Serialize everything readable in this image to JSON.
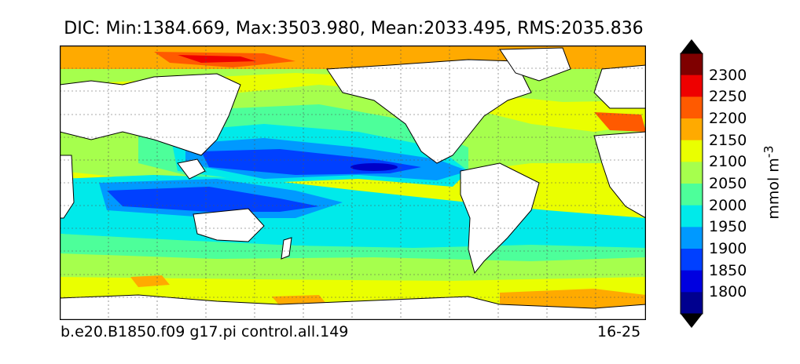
{
  "title": "DIC: Min:1384.669, Max:3503.980, Mean:2033.495, RMS:2035.836",
  "footer": {
    "left": "b.e20.B1850.f09 g17.pi control.all.149",
    "right": "16-25"
  },
  "colorbar": {
    "unit_html": "mmol m<sup>-3</sup>",
    "levels": [
      "2300",
      "2250",
      "2200",
      "2150",
      "2100",
      "2050",
      "2000",
      "1950",
      "1900",
      "1850",
      "1800"
    ],
    "colors": [
      "#7f0000",
      "#ee0000",
      "#ff5a00",
      "#ffaa00",
      "#eaff00",
      "#a6ff4d",
      "#4dff9a",
      "#00eaea",
      "#0099ff",
      "#0040ff",
      "#0000e0",
      "#00008f"
    ]
  },
  "map": {
    "ocean_colors": {
      "deep_blue": "#0000c8",
      "blue": "#0040ff",
      "mid_blue": "#0099ff",
      "cyan": "#00eaea",
      "green": "#4dff9a",
      "lime": "#a6ff4d",
      "yellow": "#eaff00",
      "orange": "#ffaa00",
      "dark_orange": "#ff5a00",
      "red": "#ee0000",
      "land": "#ffffff"
    }
  }
}
